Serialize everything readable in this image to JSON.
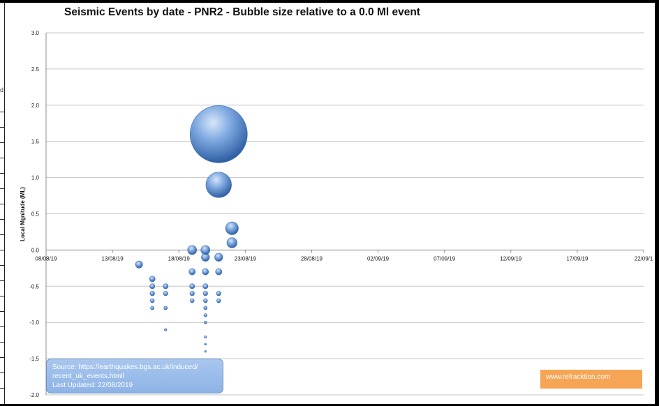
{
  "chart_data": {
    "type": "scatter",
    "variant": "bubble",
    "title": "Seismic Events by date - PNR2 - Bubble size relative to a 0.0 Ml event",
    "xlabel": "",
    "ylabel": "Local Mgnitude (ML)",
    "x_axis_type": "date",
    "x_ticks": [
      "08/08/19",
      "13/08/19",
      "18/08/19",
      "23/08/19",
      "28/08/19",
      "02/09/19",
      "07/09/19",
      "12/09/19",
      "17/09/19",
      "22/09/1"
    ],
    "xlim": [
      "2019-08-08",
      "2019-09-22"
    ],
    "ylim": [
      -2.0,
      3.0
    ],
    "y_ticks": [
      "3.0",
      "2.5",
      "2.0",
      "1.5",
      "1.0",
      "0.5",
      "0.0",
      "-0.5",
      "-1.0",
      "-1.5",
      "-2.0"
    ],
    "grid": "horizontal",
    "bubble_color": "#5b8fd4",
    "points": [
      {
        "date": "2019-08-15",
        "ml": -0.2
      },
      {
        "date": "2019-08-16",
        "ml": -0.4
      },
      {
        "date": "2019-08-16",
        "ml": -0.5
      },
      {
        "date": "2019-08-16",
        "ml": -0.6
      },
      {
        "date": "2019-08-16",
        "ml": -0.6
      },
      {
        "date": "2019-08-16",
        "ml": -0.7
      },
      {
        "date": "2019-08-16",
        "ml": -0.8
      },
      {
        "date": "2019-08-17",
        "ml": -0.5
      },
      {
        "date": "2019-08-17",
        "ml": -0.6
      },
      {
        "date": "2019-08-17",
        "ml": -0.8
      },
      {
        "date": "2019-08-17",
        "ml": -1.1
      },
      {
        "date": "2019-08-19",
        "ml": 0.0
      },
      {
        "date": "2019-08-19",
        "ml": -0.3
      },
      {
        "date": "2019-08-19",
        "ml": -0.5
      },
      {
        "date": "2019-08-19",
        "ml": -0.6
      },
      {
        "date": "2019-08-19",
        "ml": -0.7
      },
      {
        "date": "2019-08-20",
        "ml": 0.0
      },
      {
        "date": "2019-08-20",
        "ml": -0.1
      },
      {
        "date": "2019-08-20",
        "ml": -0.3
      },
      {
        "date": "2019-08-20",
        "ml": -0.5
      },
      {
        "date": "2019-08-20",
        "ml": -0.6
      },
      {
        "date": "2019-08-20",
        "ml": -0.7
      },
      {
        "date": "2019-08-20",
        "ml": -0.8
      },
      {
        "date": "2019-08-20",
        "ml": -0.9
      },
      {
        "date": "2019-08-20",
        "ml": -1.0
      },
      {
        "date": "2019-08-20",
        "ml": -1.2
      },
      {
        "date": "2019-08-20",
        "ml": -1.3
      },
      {
        "date": "2019-08-20",
        "ml": -1.4
      },
      {
        "date": "2019-08-21",
        "ml": 1.6
      },
      {
        "date": "2019-08-21",
        "ml": 0.9
      },
      {
        "date": "2019-08-21",
        "ml": -0.1
      },
      {
        "date": "2019-08-21",
        "ml": -0.3
      },
      {
        "date": "2019-08-21",
        "ml": -0.6
      },
      {
        "date": "2019-08-21",
        "ml": -0.7
      },
      {
        "date": "2019-08-22",
        "ml": 0.3
      },
      {
        "date": "2019-08-22",
        "ml": 0.1
      }
    ]
  },
  "source_box": {
    "line1": "Source: https://earthquakes.bgs.ac.uk/induced/",
    "line2": "recent_uk_events.htmll",
    "line3": "Last Updated:  22/08/2019"
  },
  "site_box": {
    "label": "www.refracktion.com"
  },
  "crop_fragment": "d"
}
